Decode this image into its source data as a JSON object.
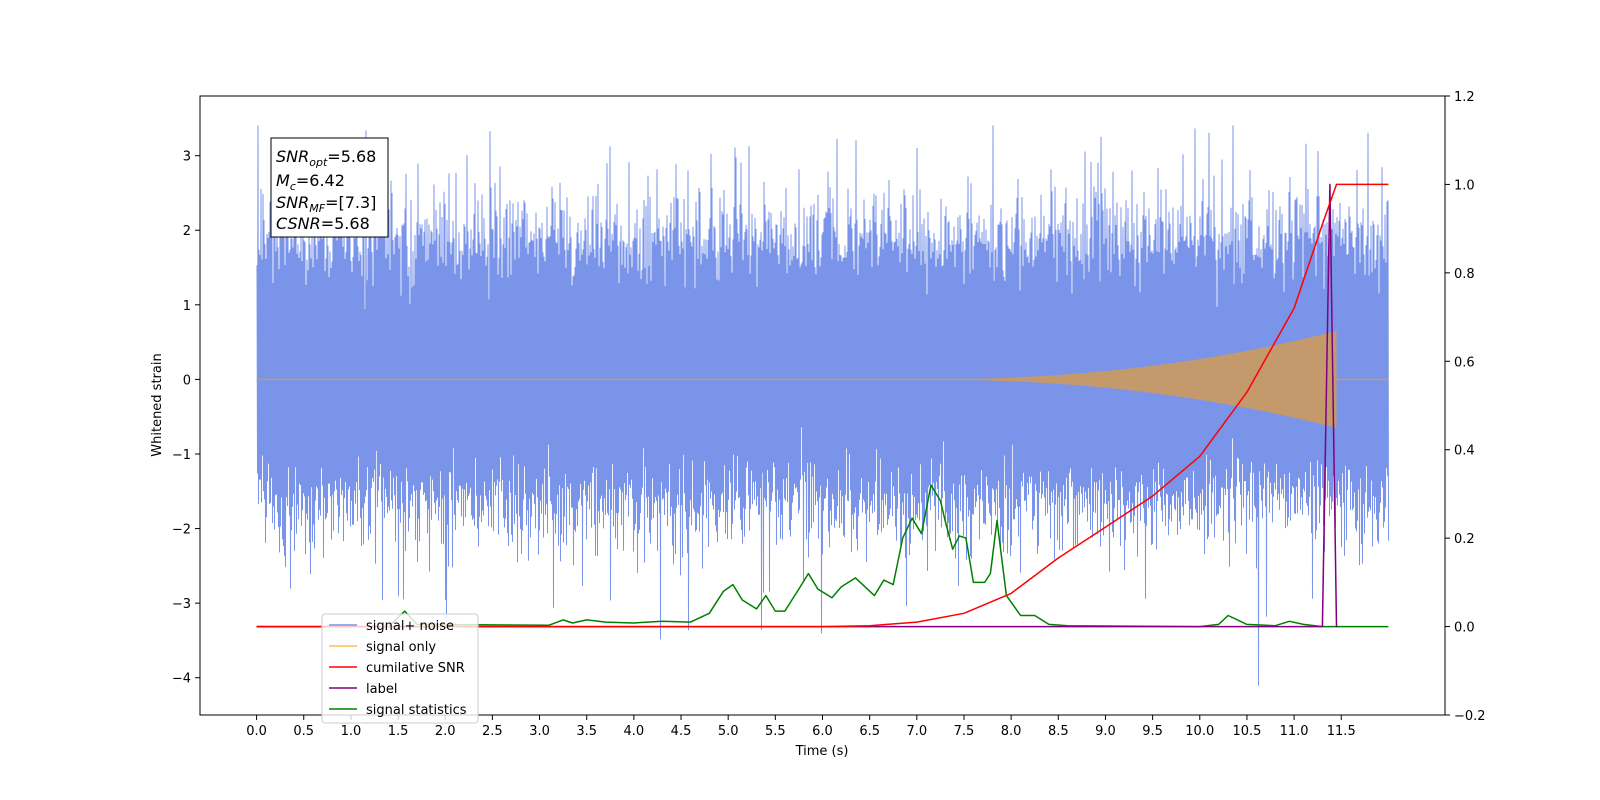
{
  "chart_data": {
    "type": "line",
    "xlabel": "Time (s)",
    "ylabel": "Whitened strain",
    "xlim": [
      -0.6,
      12.6
    ],
    "ylim": [
      -4.5,
      3.8
    ],
    "ylim_right": [
      -0.2,
      1.2
    ],
    "x_ticks": [
      "0.0",
      "0.5",
      "1.0",
      "1.5",
      "2.0",
      "2.5",
      "3.0",
      "3.5",
      "4.0",
      "4.5",
      "5.0",
      "5.5",
      "6.0",
      "6.5",
      "7.0",
      "7.5",
      "8.0",
      "8.5",
      "9.0",
      "9.5",
      "10.0",
      "10.5",
      "11.0",
      "11.5"
    ],
    "y_ticks_left": [
      "3",
      "2",
      "1",
      "0",
      "−1",
      "−2",
      "−3",
      "−4"
    ],
    "y_ticks_right": [
      "1.2",
      "1.0",
      "0.8",
      "0.6",
      "0.4",
      "0.2",
      "0.0",
      "−0.2"
    ],
    "annotation": {
      "line1": {
        "sym": "SNR",
        "sub": "opt",
        "val": "=5.68"
      },
      "line2": {
        "sym": "M",
        "sub": "c",
        "val": "=6.42"
      },
      "line3": {
        "sym": "SNR",
        "sub": "MF",
        "val": "=[7.3]"
      },
      "line4": {
        "sym": "CSNR",
        "sub": "",
        "val": "=5.68"
      }
    },
    "legend": {
      "placement": "lower-left",
      "items": [
        "signal+ noise",
        "signal only",
        "cumilative SNR",
        "label",
        "signal statistics"
      ],
      "colors": [
        "#7994e8",
        "#ffc04d",
        "#ff0000",
        "#800080",
        "#008000"
      ]
    },
    "series": [
      {
        "name": "signal+ noise",
        "axis": "left",
        "color": "#7994e8",
        "kind": "noise",
        "x_range": [
          0.0,
          12.0
        ],
        "typical_range": [
          -1.9,
          2.1
        ],
        "max": 3.4,
        "min": -4.1,
        "extreme_points": [
          [
            0.35,
            -2.8
          ],
          [
            1.5,
            -2.9
          ],
          [
            2.0,
            -2.95
          ],
          [
            3.75,
            -3.4
          ],
          [
            4.28,
            -3.48
          ],
          [
            5.35,
            -3.35
          ],
          [
            5.98,
            -3.4
          ],
          [
            10.62,
            -4.1
          ],
          [
            7.0,
            3.1
          ],
          [
            10.1,
            3.3
          ],
          [
            10.35,
            3.4
          ],
          [
            6.15,
            3.22
          ],
          [
            6.35,
            3.2
          ],
          [
            3.75,
            3.12
          ],
          [
            8.78,
            3.05
          ],
          [
            1.58,
            2.75
          ],
          [
            4.45,
            2.88
          ],
          [
            0.05,
            2.55
          ]
        ]
      },
      {
        "name": "signal only",
        "axis": "left",
        "color": "#c49a6c",
        "kind": "chirp",
        "x_range": [
          0.0,
          12.0
        ],
        "start_x": 7.0,
        "end_x": 11.45,
        "peak_amplitude": 0.65
      },
      {
        "name": "cumilative SNR",
        "axis": "right",
        "color": "#ff0000",
        "points": [
          [
            0.0,
            0.0
          ],
          [
            6.0,
            0.0
          ],
          [
            6.5,
            0.002
          ],
          [
            7.0,
            0.01
          ],
          [
            7.5,
            0.03
          ],
          [
            8.0,
            0.075
          ],
          [
            8.5,
            0.155
          ],
          [
            9.0,
            0.225
          ],
          [
            9.5,
            0.295
          ],
          [
            10.0,
            0.385
          ],
          [
            10.5,
            0.53
          ],
          [
            11.0,
            0.72
          ],
          [
            11.3,
            0.91
          ],
          [
            11.45,
            1.0
          ],
          [
            12.0,
            1.0
          ]
        ]
      },
      {
        "name": "label",
        "axis": "right",
        "color": "#800080",
        "points": [
          [
            0.0,
            0.0
          ],
          [
            11.3,
            0.0
          ],
          [
            11.38,
            1.0
          ],
          [
            11.45,
            0.0
          ],
          [
            11.46,
            0.0
          ]
        ]
      },
      {
        "name": "signal statistics",
        "axis": "right",
        "color": "#008000",
        "points": [
          [
            0.0,
            0.0
          ],
          [
            1.4,
            0.0
          ],
          [
            1.57,
            0.035
          ],
          [
            1.7,
            0.005
          ],
          [
            3.1,
            0.003
          ],
          [
            3.25,
            0.015
          ],
          [
            3.35,
            0.008
          ],
          [
            3.5,
            0.015
          ],
          [
            3.7,
            0.01
          ],
          [
            4.0,
            0.008
          ],
          [
            4.3,
            0.012
          ],
          [
            4.6,
            0.01
          ],
          [
            4.8,
            0.03
          ],
          [
            4.95,
            0.08
          ],
          [
            5.05,
            0.095
          ],
          [
            5.15,
            0.06
          ],
          [
            5.3,
            0.04
          ],
          [
            5.4,
            0.07
          ],
          [
            5.5,
            0.035
          ],
          [
            5.6,
            0.035
          ],
          [
            5.75,
            0.085
          ],
          [
            5.85,
            0.12
          ],
          [
            5.95,
            0.085
          ],
          [
            6.1,
            0.065
          ],
          [
            6.2,
            0.09
          ],
          [
            6.35,
            0.11
          ],
          [
            6.55,
            0.07
          ],
          [
            6.65,
            0.105
          ],
          [
            6.75,
            0.095
          ],
          [
            6.85,
            0.2
          ],
          [
            6.95,
            0.245
          ],
          [
            7.05,
            0.21
          ],
          [
            7.15,
            0.32
          ],
          [
            7.25,
            0.285
          ],
          [
            7.3,
            0.24
          ],
          [
            7.38,
            0.175
          ],
          [
            7.45,
            0.205
          ],
          [
            7.52,
            0.2
          ],
          [
            7.6,
            0.1
          ],
          [
            7.72,
            0.1
          ],
          [
            7.78,
            0.12
          ],
          [
            7.85,
            0.24
          ],
          [
            7.95,
            0.07
          ],
          [
            8.1,
            0.025
          ],
          [
            8.25,
            0.025
          ],
          [
            8.4,
            0.005
          ],
          [
            8.6,
            0.002
          ],
          [
            10.0,
            0.0
          ],
          [
            10.2,
            0.005
          ],
          [
            10.3,
            0.025
          ],
          [
            10.4,
            0.015
          ],
          [
            10.5,
            0.005
          ],
          [
            10.8,
            0.002
          ],
          [
            10.95,
            0.012
          ],
          [
            11.1,
            0.005
          ],
          [
            11.3,
            0.0
          ],
          [
            12.0,
            0.0
          ]
        ]
      }
    ]
  }
}
